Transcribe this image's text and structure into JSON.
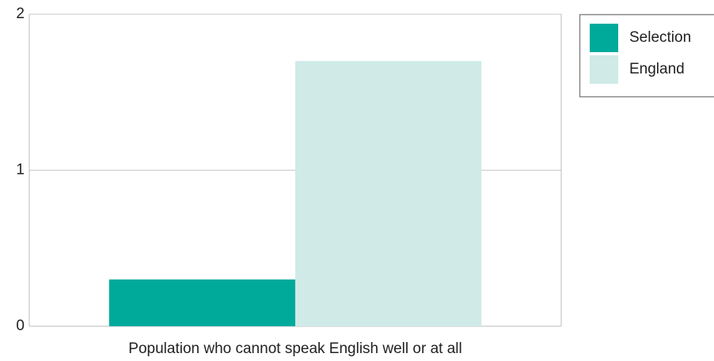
{
  "chart_data": {
    "type": "bar",
    "categories": [
      "Population who cannot speak English well or at all"
    ],
    "series": [
      {
        "name": "Selection",
        "color": "#00aa9b",
        "values": [
          0.3
        ]
      },
      {
        "name": "England",
        "color": "#cfeae7",
        "values": [
          1.7
        ]
      }
    ],
    "ylim": [
      0,
      2
    ],
    "yticks": [
      0,
      1,
      2
    ],
    "grid": true,
    "legend": "right"
  }
}
